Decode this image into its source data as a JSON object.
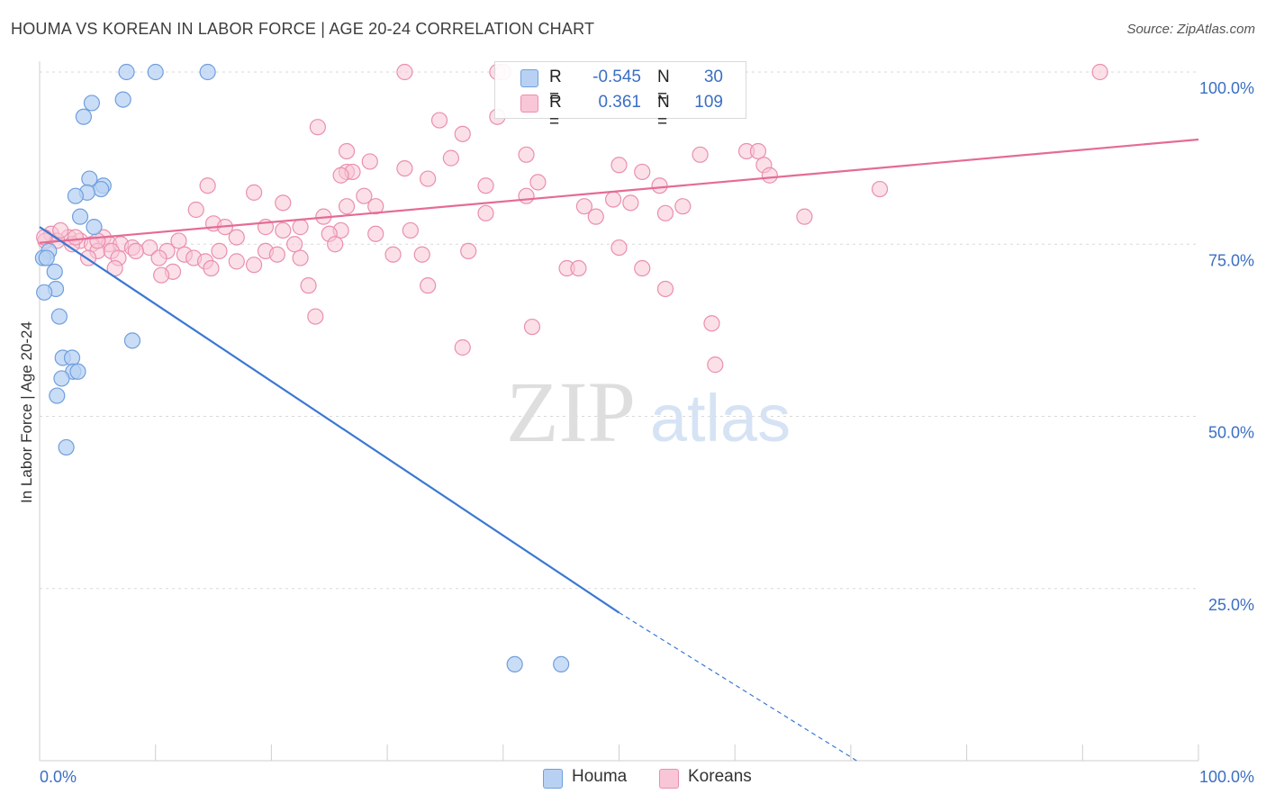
{
  "title": "HOUMA VS KOREAN IN LABOR FORCE | AGE 20-24 CORRELATION CHART",
  "source": "Source: ZipAtlas.com",
  "watermark": {
    "zip": "ZIP",
    "atlas": "atlas"
  },
  "legend": {
    "rows": [
      {
        "r_label": "R =",
        "r_value": "-0.545",
        "n_label": "N =",
        "n_value": "30"
      },
      {
        "r_label": "R =",
        "r_value": "0.361",
        "n_label": "N =",
        "n_value": "109"
      }
    ]
  },
  "bottom_legend": {
    "houma": "Houma",
    "koreans": "Koreans"
  },
  "colors": {
    "houma_fill": "#b8d1f3",
    "houma_stroke": "#6f9fdd",
    "houma_line": "#3a78d4",
    "korean_fill": "#f8c6d6",
    "korean_stroke": "#ea8fae",
    "korean_line": "#e56b96",
    "tick_label": "#3a6fc4",
    "grid": "#d9d9d9"
  },
  "chart_data": {
    "type": "scatter",
    "title": "HOUMA VS KOREAN IN LABOR FORCE | AGE 20-24 CORRELATION CHART",
    "xlabel": "",
    "ylabel": "In Labor Force | Age 20-24",
    "xlim": [
      0,
      100
    ],
    "ylim": [
      0,
      100
    ],
    "x_tick_labels": [
      "0.0%",
      "100.0%"
    ],
    "y_ticks": [
      25,
      50,
      75,
      100
    ],
    "y_tick_labels": [
      "25.0%",
      "50.0%",
      "75.0%",
      "100.0%"
    ],
    "grid": true,
    "legend_position": "top-center",
    "series": [
      {
        "name": "Houma",
        "r": -0.545,
        "n": 30,
        "trend": {
          "x0": 0,
          "y0": 77.5,
          "x1": 50,
          "y1": 21.5,
          "dashed_to_x": 70.5,
          "dashed_to_y": -1.5
        },
        "points": [
          [
            7.5,
            100
          ],
          [
            10,
            100
          ],
          [
            14.5,
            100
          ],
          [
            7.2,
            96
          ],
          [
            4.5,
            95.5
          ],
          [
            3.8,
            93.5
          ],
          [
            4.3,
            84.5
          ],
          [
            5.5,
            83.5
          ],
          [
            5.3,
            83
          ],
          [
            4.1,
            82.5
          ],
          [
            3.1,
            82
          ],
          [
            3.5,
            79
          ],
          [
            4.7,
            77.5
          ],
          [
            0.8,
            74
          ],
          [
            0.3,
            73
          ],
          [
            0.6,
            73
          ],
          [
            1.3,
            71
          ],
          [
            1.4,
            68.5
          ],
          [
            0.4,
            68
          ],
          [
            1.7,
            64.5
          ],
          [
            8,
            61
          ],
          [
            2,
            58.5
          ],
          [
            2.8,
            58.5
          ],
          [
            2.9,
            56.5
          ],
          [
            3.3,
            56.5
          ],
          [
            1.9,
            55.5
          ],
          [
            1.5,
            53
          ],
          [
            2.3,
            45.5
          ],
          [
            41,
            14
          ],
          [
            45,
            14
          ]
        ]
      },
      {
        "name": "Koreans",
        "r": 0.361,
        "n": 109,
        "trend": {
          "x0": 0,
          "y0": 75.2,
          "x1": 100,
          "y1": 90.2
        },
        "points": [
          [
            31.5,
            100
          ],
          [
            39.5,
            100
          ],
          [
            40,
            100
          ],
          [
            91.5,
            100
          ],
          [
            39.5,
            93.5
          ],
          [
            34.5,
            93
          ],
          [
            24,
            92
          ],
          [
            36.5,
            91
          ],
          [
            26.5,
            88.5
          ],
          [
            42,
            88
          ],
          [
            57,
            88
          ],
          [
            61,
            88.5
          ],
          [
            62,
            88.5
          ],
          [
            28.5,
            87
          ],
          [
            35.5,
            87.5
          ],
          [
            50,
            86.5
          ],
          [
            26.5,
            85.5
          ],
          [
            27,
            85.5
          ],
          [
            31.5,
            86
          ],
          [
            52,
            85.5
          ],
          [
            62.5,
            86.5
          ],
          [
            26,
            85
          ],
          [
            33.5,
            84.5
          ],
          [
            63,
            85
          ],
          [
            43,
            84
          ],
          [
            38.5,
            83.5
          ],
          [
            53.5,
            83.5
          ],
          [
            72.5,
            83
          ],
          [
            14.5,
            83.5
          ],
          [
            18.5,
            82.5
          ],
          [
            28,
            82
          ],
          [
            42,
            82
          ],
          [
            49.5,
            81.5
          ],
          [
            51,
            81
          ],
          [
            21,
            81
          ],
          [
            26.5,
            80.5
          ],
          [
            29,
            80.5
          ],
          [
            47,
            80.5
          ],
          [
            55.5,
            80.5
          ],
          [
            13.5,
            80
          ],
          [
            38.5,
            79.5
          ],
          [
            54,
            79.5
          ],
          [
            24.5,
            79
          ],
          [
            48,
            79
          ],
          [
            66,
            79
          ],
          [
            15,
            78
          ],
          [
            16,
            77.5
          ],
          [
            19.5,
            77.5
          ],
          [
            22.5,
            77.5
          ],
          [
            21,
            77
          ],
          [
            26,
            77
          ],
          [
            32,
            77
          ],
          [
            17,
            76
          ],
          [
            25,
            76.5
          ],
          [
            29,
            76.5
          ],
          [
            1,
            76.5
          ],
          [
            2.5,
            76
          ],
          [
            5.5,
            76
          ],
          [
            0.5,
            75.5
          ],
          [
            1.5,
            75.5
          ],
          [
            3.5,
            75.5
          ],
          [
            4.5,
            75
          ],
          [
            6,
            75
          ],
          [
            7,
            75
          ],
          [
            8,
            74.5
          ],
          [
            9.5,
            74.5
          ],
          [
            12,
            75.5
          ],
          [
            22,
            75
          ],
          [
            25.5,
            75
          ],
          [
            2.8,
            75
          ],
          [
            5,
            74
          ],
          [
            6.2,
            74
          ],
          [
            8.3,
            74
          ],
          [
            11,
            74
          ],
          [
            12.5,
            73.5
          ],
          [
            15.5,
            74
          ],
          [
            19.5,
            74
          ],
          [
            20.5,
            73.5
          ],
          [
            4.2,
            73
          ],
          [
            6.8,
            73
          ],
          [
            10.3,
            73
          ],
          [
            13.3,
            73
          ],
          [
            14.3,
            72.5
          ],
          [
            17,
            72.5
          ],
          [
            18.5,
            72
          ],
          [
            22.5,
            73
          ],
          [
            30.5,
            73.5
          ],
          [
            33,
            73.5
          ],
          [
            37,
            74
          ],
          [
            50,
            74.5
          ],
          [
            6.5,
            71.5
          ],
          [
            11.5,
            71
          ],
          [
            14.8,
            71.5
          ],
          [
            10.5,
            70.5
          ],
          [
            45.5,
            71.5
          ],
          [
            46.5,
            71.5
          ],
          [
            52,
            71.5
          ],
          [
            23.2,
            69
          ],
          [
            33.5,
            69
          ],
          [
            54,
            68.5
          ],
          [
            23.8,
            64.5
          ],
          [
            58,
            63.5
          ],
          [
            42.5,
            63
          ],
          [
            36.5,
            60
          ],
          [
            58.3,
            57.5
          ],
          [
            0.4,
            76
          ],
          [
            3.1,
            76
          ],
          [
            1.8,
            77
          ],
          [
            5,
            75.5
          ]
        ]
      }
    ]
  }
}
